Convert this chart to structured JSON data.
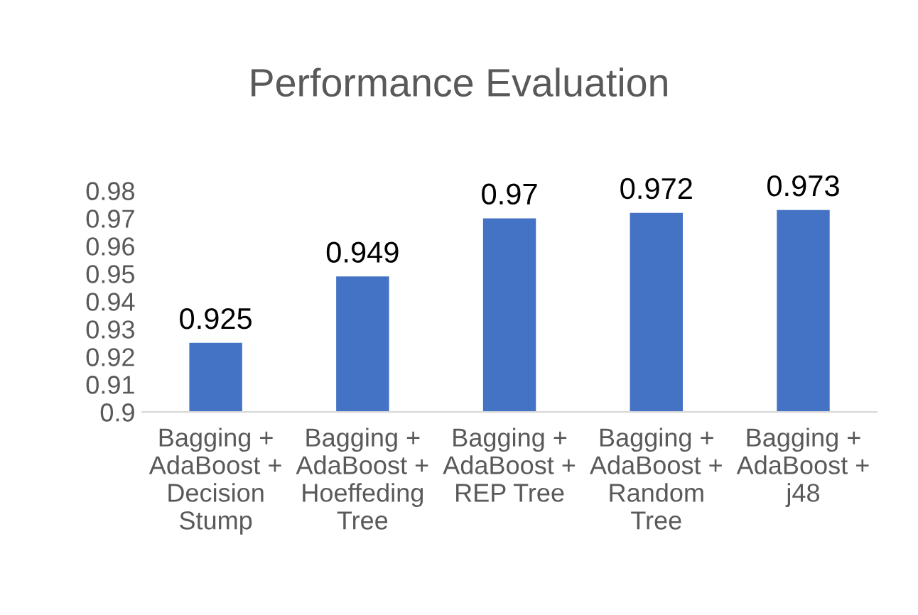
{
  "chart_data": {
    "type": "bar",
    "title": "Performance Evaluation",
    "categories": [
      "Bagging +\nAdaBoost +\nDecision\nStump",
      "Bagging +\nAdaBoost +\nHoeffeding\nTree",
      "Bagging +\nAdaBoost +\nREP Tree",
      "Bagging +\nAdaBoost +\nRandom\nTree",
      "Bagging +\nAdaBoost +\nj48"
    ],
    "values": [
      0.925,
      0.949,
      0.97,
      0.972,
      0.973
    ],
    "color": "#4472c4",
    "ylim": [
      0.9,
      0.98
    ],
    "yticks": [
      0.9,
      0.91,
      0.92,
      0.93,
      0.94,
      0.95,
      0.96,
      0.97,
      0.98
    ],
    "data_labels": true,
    "grid": false,
    "legend": false
  }
}
